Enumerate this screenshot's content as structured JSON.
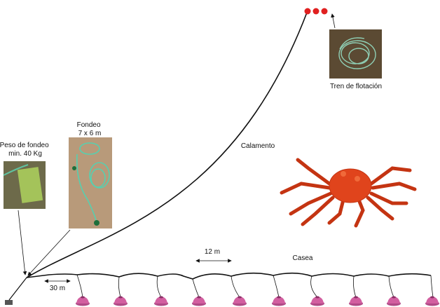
{
  "labels": {
    "peso_fondeo": [
      "Peso de fondeo",
      "min. 40 Kg"
    ],
    "fondeo": [
      "Fondeo",
      "7 x 6 m"
    ],
    "calamento": "Calamento",
    "tren_flotacion": "Tren de flotación",
    "casea": "Casea",
    "distancia_nasas": "12 m",
    "distancia_fondeo": "30 m"
  }
}
